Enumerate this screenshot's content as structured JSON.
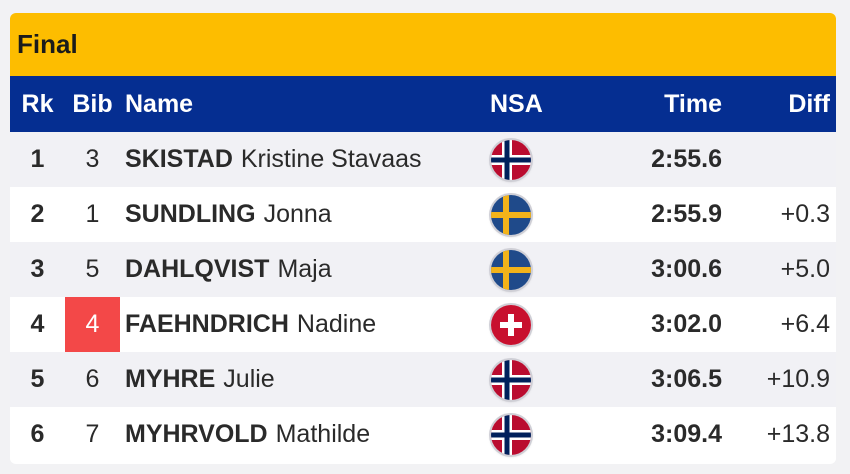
{
  "title": "Final",
  "headers": {
    "rk": "Rk",
    "bib": "Bib",
    "name": "Name",
    "nsa": "NSA",
    "time": "Time",
    "diff": "Diff"
  },
  "highlight_color": "#f34848",
  "rows": [
    {
      "rk": "1",
      "bib": "3",
      "surname": "SKISTAD",
      "given": "Kristine Stavaas",
      "nsa": "norway-flag-icon",
      "time": "2:55.6",
      "diff": "",
      "bib_highlight": false
    },
    {
      "rk": "2",
      "bib": "1",
      "surname": "SUNDLING",
      "given": "Jonna",
      "nsa": "sweden-flag-icon",
      "time": "2:55.9",
      "diff": "+0.3",
      "bib_highlight": false
    },
    {
      "rk": "3",
      "bib": "5",
      "surname": "DAHLQVIST",
      "given": "Maja",
      "nsa": "sweden-flag-icon",
      "time": "3:00.6",
      "diff": "+5.0",
      "bib_highlight": false
    },
    {
      "rk": "4",
      "bib": "4",
      "surname": "FAEHNDRICH",
      "given": "Nadine",
      "nsa": "switzerland-flag-icon",
      "time": "3:02.0",
      "diff": "+6.4",
      "bib_highlight": true
    },
    {
      "rk": "5",
      "bib": "6",
      "surname": "MYHRE",
      "given": "Julie",
      "nsa": "norway-flag-icon",
      "time": "3:06.5",
      "diff": "+10.9",
      "bib_highlight": false
    },
    {
      "rk": "6",
      "bib": "7",
      "surname": "MYHRVOLD",
      "given": "Mathilde",
      "nsa": "norway-flag-icon",
      "time": "3:09.4",
      "diff": "+13.8",
      "bib_highlight": false
    }
  ]
}
